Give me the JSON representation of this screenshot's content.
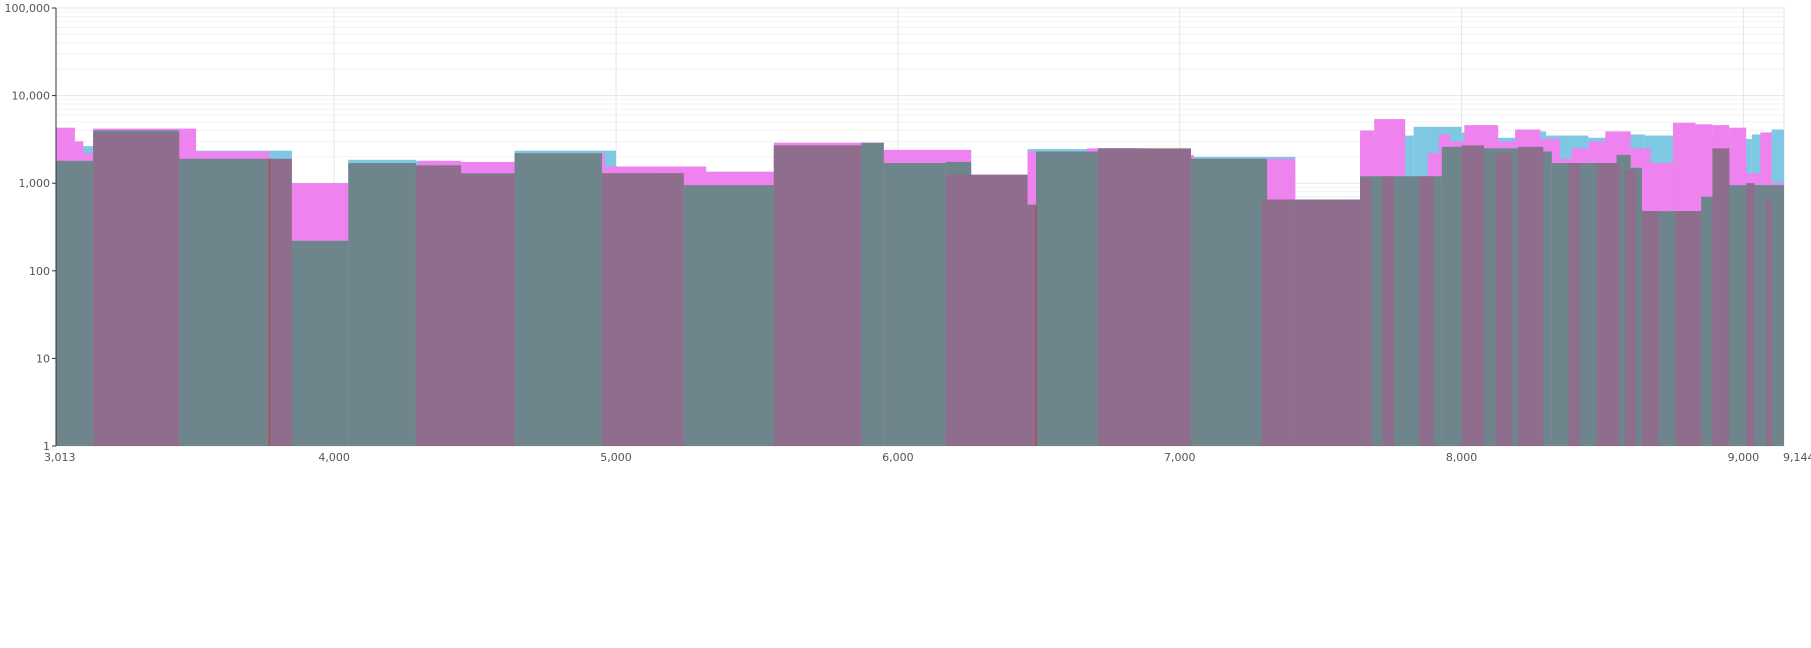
{
  "chart_data": {
    "type": "area",
    "title": "",
    "xlabel": "",
    "ylabel": "",
    "x_range": [
      3013,
      9144
    ],
    "y_range": [
      1,
      100000
    ],
    "y_scale": "log",
    "grid": true,
    "legend": "none",
    "x_ticks": [
      {
        "value": 3013,
        "label": "3,013"
      },
      {
        "value": 4000,
        "label": "4,000"
      },
      {
        "value": 5000,
        "label": "5,000"
      },
      {
        "value": 6000,
        "label": "6,000"
      },
      {
        "value": 7000,
        "label": "7,000"
      },
      {
        "value": 8000,
        "label": "8,000"
      },
      {
        "value": 9000,
        "label": "9,000"
      },
      {
        "value": 9144,
        "label": "9,144"
      }
    ],
    "y_ticks": [
      {
        "value": 1,
        "label": "1"
      },
      {
        "value": 10,
        "label": "10"
      },
      {
        "value": 100,
        "label": "100"
      },
      {
        "value": 1000,
        "label": "1,000"
      },
      {
        "value": 10000,
        "label": "10,000"
      },
      {
        "value": 100000,
        "label": "100,000"
      }
    ],
    "series": [
      {
        "color": "#7ec8e3",
        "segments": [
          [
            3013,
            3020,
            1800
          ],
          [
            3020,
            3145,
            2650
          ],
          [
            3145,
            3450,
            3800
          ],
          [
            3450,
            3850,
            2350
          ],
          [
            3850,
            4050,
            1000
          ],
          [
            4050,
            4290,
            1850
          ],
          [
            4290,
            4370,
            1800
          ],
          [
            4370,
            4580,
            1700
          ],
          [
            4580,
            4640,
            1350
          ],
          [
            4640,
            5000,
            2350
          ],
          [
            5000,
            5300,
            1450
          ],
          [
            5300,
            5560,
            1350
          ],
          [
            5560,
            5950,
            2600
          ],
          [
            5950,
            6260,
            2350
          ],
          [
            6260,
            6460,
            1250
          ],
          [
            6460,
            6860,
            2450
          ],
          [
            6860,
            7000,
            2050
          ],
          [
            7000,
            7410,
            2000
          ],
          [
            7410,
            7640,
            650
          ],
          [
            7640,
            7830,
            3500
          ],
          [
            7830,
            8000,
            4400
          ],
          [
            8000,
            8100,
            3800
          ],
          [
            8100,
            8200,
            3300
          ],
          [
            8200,
            8300,
            3900
          ],
          [
            8300,
            8450,
            3500
          ],
          [
            8450,
            8550,
            3300
          ],
          [
            8550,
            8650,
            3600
          ],
          [
            8650,
            8760,
            3500
          ],
          [
            8760,
            8820,
            1700
          ],
          [
            8820,
            8880,
            4100
          ],
          [
            8880,
            8990,
            3500
          ],
          [
            8990,
            9030,
            3200
          ],
          [
            9030,
            9100,
            3600
          ],
          [
            9100,
            9144,
            4100
          ]
        ]
      },
      {
        "color": "#ee82ee",
        "segments": [
          [
            3013,
            3080,
            4300
          ],
          [
            3080,
            3110,
            3000
          ],
          [
            3110,
            3145,
            2200
          ],
          [
            3145,
            3510,
            4200
          ],
          [
            3510,
            3770,
            2300
          ],
          [
            3770,
            3840,
            1000
          ],
          [
            3840,
            4050,
            1000
          ],
          [
            4050,
            4300,
            1600
          ],
          [
            4300,
            4450,
            1800
          ],
          [
            4450,
            4640,
            1750
          ],
          [
            4640,
            4960,
            2200
          ],
          [
            4960,
            5320,
            1550
          ],
          [
            5320,
            5560,
            1350
          ],
          [
            5560,
            5950,
            2900
          ],
          [
            5950,
            6260,
            2400
          ],
          [
            6260,
            6460,
            1250
          ],
          [
            6460,
            6670,
            2300
          ],
          [
            6670,
            6880,
            2500
          ],
          [
            6880,
            7050,
            2100
          ],
          [
            7050,
            7410,
            1900
          ],
          [
            7410,
            7480,
            650
          ],
          [
            7480,
            7590,
            1
          ],
          [
            7590,
            7640,
            650
          ],
          [
            7640,
            7690,
            4000
          ],
          [
            7690,
            7800,
            5400
          ],
          [
            7800,
            7880,
            1200
          ],
          [
            7880,
            7920,
            2200
          ],
          [
            7920,
            7960,
            3600
          ],
          [
            7960,
            8010,
            3000
          ],
          [
            8010,
            8130,
            4600
          ],
          [
            8130,
            8190,
            3000
          ],
          [
            8190,
            8280,
            4100
          ],
          [
            8280,
            8350,
            3200
          ],
          [
            8350,
            8390,
            1900
          ],
          [
            8390,
            8450,
            2500
          ],
          [
            8450,
            8510,
            3000
          ],
          [
            8510,
            8600,
            3900
          ],
          [
            8600,
            8670,
            2500
          ],
          [
            8670,
            8750,
            1700
          ],
          [
            8750,
            8830,
            4900
          ],
          [
            8830,
            8890,
            4700
          ],
          [
            8890,
            8950,
            4600
          ],
          [
            8950,
            9010,
            4300
          ],
          [
            9010,
            9060,
            1300
          ],
          [
            9060,
            9100,
            3800
          ],
          [
            9100,
            9144,
            1000
          ]
        ]
      },
      {
        "color": "#6e858c",
        "segments": [
          [
            3013,
            3145,
            1800
          ],
          [
            3145,
            3450,
            4000
          ],
          [
            3450,
            3780,
            1900
          ],
          [
            3780,
            3830,
            1750
          ],
          [
            3830,
            4050,
            220
          ],
          [
            4050,
            4290,
            1700
          ],
          [
            4290,
            4370,
            1300
          ],
          [
            4370,
            4640,
            1300
          ],
          [
            4640,
            4950,
            2200
          ],
          [
            4950,
            5130,
            1250
          ],
          [
            5130,
            5240,
            1300
          ],
          [
            5240,
            5560,
            950
          ],
          [
            5560,
            5870,
            2700
          ],
          [
            5870,
            5950,
            2900
          ],
          [
            5950,
            6170,
            1700
          ],
          [
            6170,
            6260,
            1750
          ],
          [
            6260,
            6490,
            570
          ],
          [
            6490,
            6710,
            2300
          ],
          [
            6710,
            6850,
            2500
          ],
          [
            6850,
            7040,
            1100
          ],
          [
            7040,
            7310,
            1900
          ],
          [
            7310,
            7410,
            650
          ],
          [
            7410,
            7640,
            650
          ],
          [
            7640,
            7760,
            1200
          ],
          [
            7760,
            7930,
            1200
          ],
          [
            7930,
            8050,
            2600
          ],
          [
            8050,
            8200,
            2500
          ],
          [
            8200,
            8320,
            2300
          ],
          [
            8320,
            8550,
            1700
          ],
          [
            8550,
            8600,
            2100
          ],
          [
            8600,
            8640,
            1500
          ],
          [
            8640,
            8700,
            480
          ],
          [
            8700,
            8850,
            480
          ],
          [
            8850,
            8900,
            700
          ],
          [
            8900,
            8950,
            2300
          ],
          [
            8950,
            9144,
            950
          ]
        ]
      },
      {
        "color": "#8e6e8c",
        "segments": [
          [
            3145,
            3450,
            3700
          ],
          [
            3770,
            3850,
            1900
          ],
          [
            3850,
            4050,
            1
          ],
          [
            4290,
            4450,
            1600
          ],
          [
            4450,
            4640,
            1250
          ],
          [
            4950,
            5240,
            1300
          ],
          [
            5560,
            5870,
            2700
          ],
          [
            6170,
            6460,
            1250
          ],
          [
            6460,
            6490,
            560
          ],
          [
            6710,
            7040,
            2500
          ],
          [
            7290,
            7410,
            650
          ],
          [
            7410,
            7640,
            650
          ],
          [
            7640,
            7680,
            1150
          ],
          [
            7720,
            7760,
            1200
          ],
          [
            7850,
            7900,
            1200
          ],
          [
            8000,
            8080,
            2700
          ],
          [
            8120,
            8180,
            2200
          ],
          [
            8200,
            8290,
            2600
          ],
          [
            8380,
            8420,
            1700
          ],
          [
            8480,
            8560,
            1700
          ],
          [
            8580,
            8620,
            1400
          ],
          [
            8640,
            8700,
            480
          ],
          [
            8760,
            8850,
            480
          ],
          [
            8890,
            8950,
            2500
          ],
          [
            9010,
            9040,
            1000
          ],
          [
            9080,
            9100,
            650
          ]
        ]
      }
    ],
    "markers": [
      {
        "x": 3770,
        "y": 1900,
        "color": "#b04a5a"
      },
      {
        "x": 6490,
        "y": 560,
        "color": "#b04a5a"
      }
    ]
  }
}
